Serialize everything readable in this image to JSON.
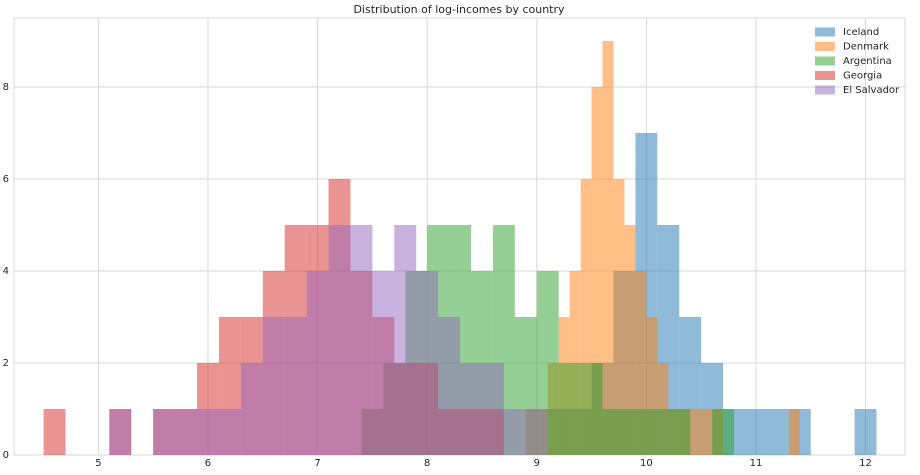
{
  "chart_data": {
    "type": "histogram",
    "title": "Distribution of log-incomes by country",
    "xlim": [
      4.23,
      12.36
    ],
    "ylim": [
      0,
      9.5
    ],
    "xticks": [
      5,
      6,
      7,
      8,
      9,
      10,
      11,
      12
    ],
    "yticks": [
      0,
      2,
      4,
      6,
      8
    ],
    "grid": true,
    "legend": "upper right",
    "alpha": 0.5,
    "series": [
      {
        "name": "Iceland",
        "color": "#1f77b4",
        "bins": [
          9.1,
          9.3,
          9.5,
          9.7,
          9.9,
          10.1,
          10.3,
          10.5,
          10.7,
          10.9,
          11.1,
          11.3,
          11.5,
          11.7,
          11.9,
          12.1
        ],
        "values": [
          1,
          1,
          2,
          4,
          7,
          5,
          3,
          2,
          1,
          1,
          1,
          1,
          0,
          0,
          1
        ]
      },
      {
        "name": "Denmark",
        "color": "#ff7f0e",
        "bins": [
          8.9,
          9.0,
          9.1,
          9.2,
          9.3,
          9.4,
          9.5,
          9.6,
          9.7,
          9.8,
          9.9,
          10.0,
          10.1,
          10.2,
          10.3,
          10.4,
          10.5,
          10.6,
          10.7,
          10.8,
          10.9,
          11.0,
          11.1,
          11.2,
          11.3,
          11.4,
          11.5
        ],
        "values": [
          1,
          1,
          2,
          3,
          4,
          6,
          8,
          9,
          6,
          5,
          4,
          3,
          2,
          1,
          1,
          1,
          1,
          1,
          0,
          0,
          0,
          0,
          0,
          0,
          1,
          0
        ]
      },
      {
        "name": "Argentina",
        "color": "#2ca02c",
        "bins": [
          7.4,
          7.6,
          7.8,
          8.0,
          8.2,
          8.4,
          8.6,
          8.8,
          9.0,
          9.2,
          9.4,
          9.6,
          9.8,
          10.0,
          10.2,
          10.4,
          10.6,
          10.8
        ],
        "values": [
          1,
          2,
          4,
          5,
          5,
          4,
          5,
          3,
          4,
          2,
          2,
          1,
          1,
          1,
          1,
          0,
          1
        ]
      },
      {
        "name": "Georgia",
        "color": "#d62728",
        "bins": [
          4.5,
          4.7,
          4.9,
          5.1,
          5.3,
          5.5,
          5.7,
          5.9,
          6.1,
          6.3,
          6.5,
          6.7,
          6.9,
          7.1,
          7.3,
          7.5,
          7.7,
          7.9,
          8.1,
          8.3,
          8.5,
          8.7
        ],
        "values": [
          1,
          0,
          0,
          1,
          0,
          1,
          1,
          2,
          3,
          3,
          4,
          5,
          5,
          6,
          4,
          3,
          2,
          2,
          1,
          1,
          1
        ]
      },
      {
        "name": "El Salvador",
        "color": "#9467bd",
        "bins": [
          5.1,
          5.3,
          5.5,
          5.7,
          5.9,
          6.1,
          6.3,
          6.5,
          6.7,
          6.9,
          7.1,
          7.3,
          7.5,
          7.7,
          7.9,
          8.1,
          8.3,
          8.5,
          8.7,
          8.9,
          9.1
        ],
        "values": [
          1,
          0,
          1,
          1,
          1,
          1,
          2,
          3,
          3,
          4,
          5,
          5,
          4,
          5,
          4,
          3,
          2,
          2,
          1,
          1
        ]
      }
    ]
  }
}
